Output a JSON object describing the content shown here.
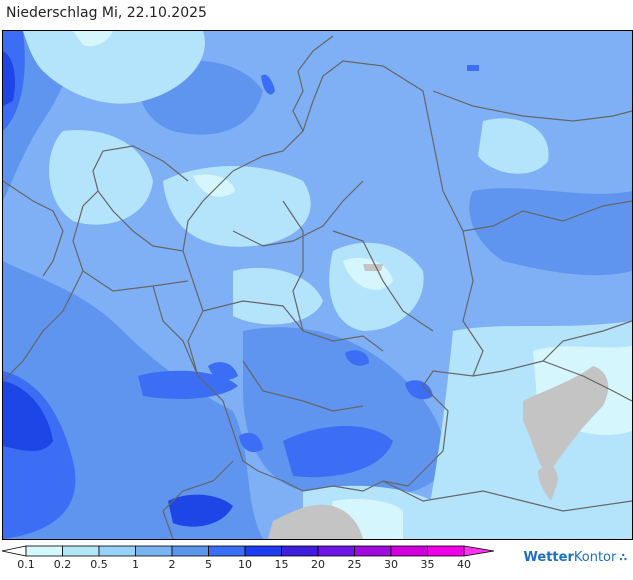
{
  "header": {
    "title": "Niederschlag Mi, 22.10.2025"
  },
  "legend": {
    "ticks": [
      "0.1",
      "0.2",
      "0.5",
      "1",
      "2",
      "5",
      "10",
      "15",
      "20",
      "25",
      "30",
      "35",
      "40"
    ],
    "colors": [
      "#ffffff",
      "#d2fafc",
      "#b4e6fa",
      "#96d2fa",
      "#78b4f0",
      "#5a96eb",
      "#3c6ef5",
      "#1e3cf0",
      "#3c1edc",
      "#6e14e6",
      "#a00adc",
      "#d200dc",
      "#f000e6",
      "#ff32f0"
    ]
  },
  "map": {
    "colors": {
      "background": "#7fb0f5",
      "light": "#b4e4fb",
      "lighter": "#d6f6fd",
      "mid": "#93c5f7",
      "medium": "#5f95ee",
      "strong": "#3c6ef5",
      "deep": "#1e46e6",
      "dry": "#c4c4c4",
      "border": "#666666"
    }
  },
  "brand": {
    "name_part1": "Wetter",
    "name_part2": "Kontor",
    "icon": "rain-drops-icon"
  }
}
